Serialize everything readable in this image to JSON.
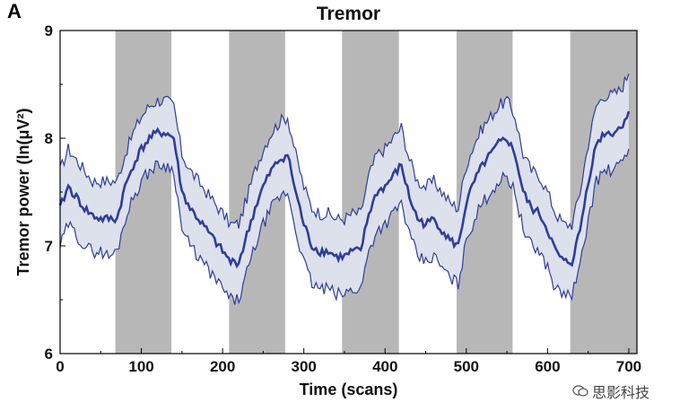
{
  "panel_label": "A",
  "watermark_text": "思影科技",
  "colors": {
    "block_fill": "#b7b7b7",
    "line": "#2e3d9c",
    "band_fill": "#dde1ec",
    "axis": "#000000"
  },
  "chart_data": {
    "type": "line",
    "title": "Tremor",
    "xlabel": "Time (scans)",
    "ylabel": "Tremor power (ln(μV²)",
    "xlim": [
      0,
      710
    ],
    "ylim": [
      6,
      9
    ],
    "xticks": [
      0,
      100,
      200,
      300,
      400,
      500,
      600,
      700
    ],
    "yticks": [
      6,
      7,
      8,
      9
    ],
    "grid": false,
    "shaded_blocks": [
      [
        68,
        137
      ],
      [
        208,
        277
      ],
      [
        347,
        417
      ],
      [
        488,
        557
      ],
      [
        628,
        710
      ]
    ],
    "series": [
      {
        "x": [
          0,
          10,
          20,
          30,
          40,
          50,
          60,
          70,
          80,
          90,
          100,
          110,
          120,
          130,
          140,
          150,
          160,
          170,
          180,
          190,
          200,
          210,
          220,
          230,
          240,
          250,
          260,
          270,
          280,
          290,
          300,
          310,
          320,
          330,
          340,
          350,
          360,
          370,
          380,
          390,
          400,
          410,
          420,
          430,
          440,
          450,
          460,
          470,
          480,
          490,
          500,
          510,
          520,
          530,
          540,
          550,
          560,
          570,
          580,
          590,
          600,
          610,
          620,
          630,
          640,
          650,
          660,
          670,
          680,
          690,
          700
        ],
        "y": [
          7.35,
          7.55,
          7.45,
          7.35,
          7.28,
          7.25,
          7.25,
          7.25,
          7.55,
          7.75,
          7.9,
          8.0,
          8.05,
          8.05,
          8.0,
          7.5,
          7.35,
          7.25,
          7.15,
          7.05,
          6.95,
          6.85,
          6.85,
          7.1,
          7.35,
          7.55,
          7.7,
          7.8,
          7.85,
          7.5,
          7.2,
          7.0,
          6.95,
          6.95,
          6.9,
          6.9,
          6.95,
          6.95,
          7.3,
          7.5,
          7.55,
          7.65,
          7.75,
          7.45,
          7.25,
          7.2,
          7.25,
          7.15,
          7.05,
          7.0,
          7.4,
          7.6,
          7.75,
          7.85,
          7.95,
          8.0,
          7.85,
          7.5,
          7.35,
          7.3,
          7.15,
          6.95,
          6.85,
          6.85,
          7.15,
          7.6,
          7.95,
          8.05,
          8.05,
          8.1,
          8.25
        ],
        "ci_lower": [
          7.0,
          7.2,
          7.1,
          7.0,
          6.95,
          6.95,
          6.9,
          6.95,
          7.25,
          7.45,
          7.6,
          7.7,
          7.75,
          7.75,
          7.7,
          7.15,
          7.0,
          6.9,
          6.8,
          6.7,
          6.6,
          6.5,
          6.5,
          6.75,
          7.0,
          7.2,
          7.35,
          7.45,
          7.5,
          7.15,
          6.85,
          6.65,
          6.6,
          6.6,
          6.55,
          6.55,
          6.6,
          6.6,
          6.95,
          7.15,
          7.2,
          7.3,
          7.4,
          7.1,
          6.9,
          6.85,
          6.9,
          6.8,
          6.7,
          6.65,
          7.05,
          7.25,
          7.4,
          7.5,
          7.6,
          7.65,
          7.5,
          7.15,
          7.0,
          6.95,
          6.8,
          6.6,
          6.55,
          6.55,
          6.8,
          7.25,
          7.6,
          7.7,
          7.7,
          7.75,
          7.9
        ],
        "ci_upper": [
          7.7,
          7.9,
          7.8,
          7.7,
          7.6,
          7.6,
          7.6,
          7.6,
          7.85,
          8.05,
          8.2,
          8.3,
          8.35,
          8.35,
          8.3,
          7.85,
          7.7,
          7.6,
          7.5,
          7.4,
          7.3,
          7.2,
          7.2,
          7.45,
          7.7,
          7.9,
          8.05,
          8.15,
          8.2,
          7.85,
          7.55,
          7.35,
          7.3,
          7.3,
          7.25,
          7.25,
          7.3,
          7.3,
          7.65,
          7.85,
          7.9,
          8.0,
          8.1,
          7.8,
          7.6,
          7.55,
          7.6,
          7.5,
          7.4,
          7.35,
          7.75,
          7.95,
          8.1,
          8.2,
          8.3,
          8.35,
          8.2,
          7.85,
          7.7,
          7.65,
          7.5,
          7.3,
          7.2,
          7.2,
          7.5,
          7.95,
          8.3,
          8.4,
          8.4,
          8.45,
          8.6
        ]
      }
    ]
  }
}
